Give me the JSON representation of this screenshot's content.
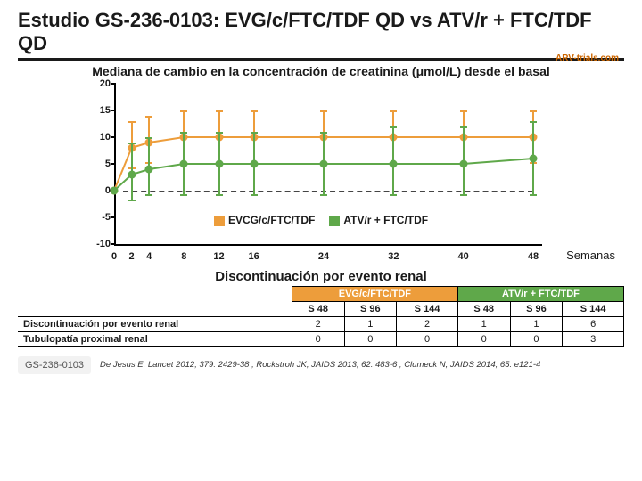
{
  "title": "Estudio GS-236-0103: EVG/c/FTC/TDF QD vs ATV/r + FTC/TDF QD",
  "logo": "ARV-trials.com",
  "chart": {
    "subtitle": "Mediana de cambio en la concentración de creatinina (μmol/L) desde el basal",
    "type": "line-with-error",
    "ylim": [
      -10,
      20
    ],
    "ytick_step": 5,
    "yticks": [
      -10,
      -5,
      0,
      5,
      10,
      15,
      20
    ],
    "xticks": [
      0,
      2,
      4,
      8,
      12,
      16,
      24,
      32,
      40,
      48
    ],
    "xmax": 48,
    "xlabel": "Semanas",
    "zero_line_color": "#444444",
    "legend": [
      {
        "label": "EVCG/c/FTC/TDF",
        "color": "#ed9d3b"
      },
      {
        "label": "ATV/r + FTC/TDF",
        "color": "#5fa84a"
      }
    ],
    "series": [
      {
        "name": "EVG/c/FTC/TDF",
        "color": "#ed9d3b",
        "line_width": 2,
        "points": [
          {
            "x": 0,
            "y": 0,
            "lo": 0,
            "hi": 0
          },
          {
            "x": 2,
            "y": 8,
            "lo": 4,
            "hi": 13
          },
          {
            "x": 4,
            "y": 9,
            "lo": 5,
            "hi": 14
          },
          {
            "x": 8,
            "y": 10,
            "lo": 5,
            "hi": 15
          },
          {
            "x": 12,
            "y": 10,
            "lo": 5,
            "hi": 15
          },
          {
            "x": 16,
            "y": 10,
            "lo": 5,
            "hi": 15
          },
          {
            "x": 24,
            "y": 10,
            "lo": 5,
            "hi": 15
          },
          {
            "x": 32,
            "y": 10,
            "lo": 5,
            "hi": 15
          },
          {
            "x": 40,
            "y": 10,
            "lo": 5,
            "hi": 15
          },
          {
            "x": 48,
            "y": 10,
            "lo": 5,
            "hi": 15
          }
        ]
      },
      {
        "name": "ATV/r + FTC/TDF",
        "color": "#5fa84a",
        "line_width": 2,
        "points": [
          {
            "x": 0,
            "y": 0,
            "lo": 0,
            "hi": 0
          },
          {
            "x": 2,
            "y": 3,
            "lo": -2,
            "hi": 9
          },
          {
            "x": 4,
            "y": 4,
            "lo": -1,
            "hi": 10
          },
          {
            "x": 8,
            "y": 5,
            "lo": -1,
            "hi": 11
          },
          {
            "x": 12,
            "y": 5,
            "lo": -1,
            "hi": 11
          },
          {
            "x": 16,
            "y": 5,
            "lo": -1,
            "hi": 11
          },
          {
            "x": 24,
            "y": 5,
            "lo": -1,
            "hi": 11
          },
          {
            "x": 32,
            "y": 5,
            "lo": -1,
            "hi": 12
          },
          {
            "x": 40,
            "y": 5,
            "lo": -1,
            "hi": 12
          },
          {
            "x": 48,
            "y": 6,
            "lo": -1,
            "hi": 13
          }
        ]
      }
    ]
  },
  "table": {
    "title": "Discontinuación por evento renal",
    "group_headers": [
      "EVG/c/FTC/TDF",
      "ATV/r + FTC/TDF"
    ],
    "sub_headers": [
      "S 48",
      "S 96",
      "S 144",
      "S 48",
      "S 96",
      "S 144"
    ],
    "rows": [
      {
        "label": "Discontinuación por evento renal",
        "cells": [
          "2",
          "1",
          "2",
          "1",
          "1",
          "6"
        ]
      },
      {
        "label": "Tubulopatía proximal renal",
        "cells": [
          "0",
          "0",
          "0",
          "0",
          "0",
          "3"
        ]
      }
    ],
    "group1_bg": "#ed9d3b",
    "group2_bg": "#5fa84a"
  },
  "footer": {
    "badge": "GS-236-0103",
    "citation": "De Jesus E. Lancet 2012; 379: 2429-38 ; Rockstroh JK, JAIDS 2013; 62: 483-6 ; Clumeck N, JAIDS 2014; 65: e121-4"
  }
}
